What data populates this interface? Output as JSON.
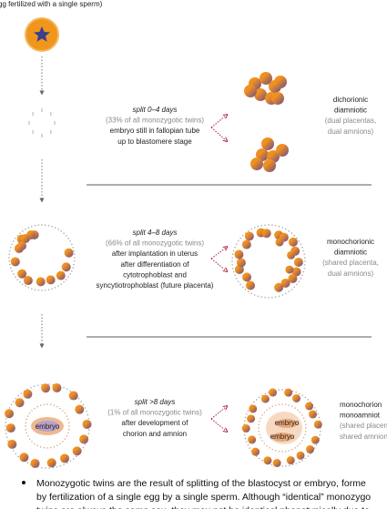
{
  "caption": "gg fertilized with a single sperm)",
  "stages": [
    {
      "split": "split 0–4 days",
      "percent": "(33% of all monozygotic twins)",
      "lines": [
        "embryo still in fallopian tube",
        "up to blastomere stage"
      ],
      "outcome": [
        "dichorionic",
        "diamniotic"
      ],
      "outcome_note": [
        "(dual placentas,",
        "dual amnions)"
      ]
    },
    {
      "split": "split 4–8 days",
      "percent": "(66% of all monozygotic twins)",
      "lines": [
        "after implantation in uterus",
        "after differentiation of",
        "cytotrophoblast and",
        "syncytiotrophoblast (future placenta)"
      ],
      "outcome": [
        "monochorionic",
        "diamniotic"
      ],
      "outcome_note": [
        "(shared placenta,",
        "dual amnions)"
      ]
    },
    {
      "split": "split >8 days",
      "percent": "(1% of all monozygotic twins)",
      "lines": [
        "after development of",
        "chorion and amnion"
      ],
      "outcome": [
        "monochorion",
        "monoamniot"
      ],
      "outcome_note": [
        "(shared placen",
        "shared amnion"
      ]
    }
  ],
  "embryo_labels": [
    "embryo",
    "embryo",
    "embryo"
  ],
  "bullet": [
    "Monozygotic twins are the result of splitting of the blastocyst or embryo, forme",
    "by fertilization of a single egg by a single sperm. Although “identical” monozygo",
    "twins are always the same sex, they may not be identical phenotypically due to"
  ]
}
